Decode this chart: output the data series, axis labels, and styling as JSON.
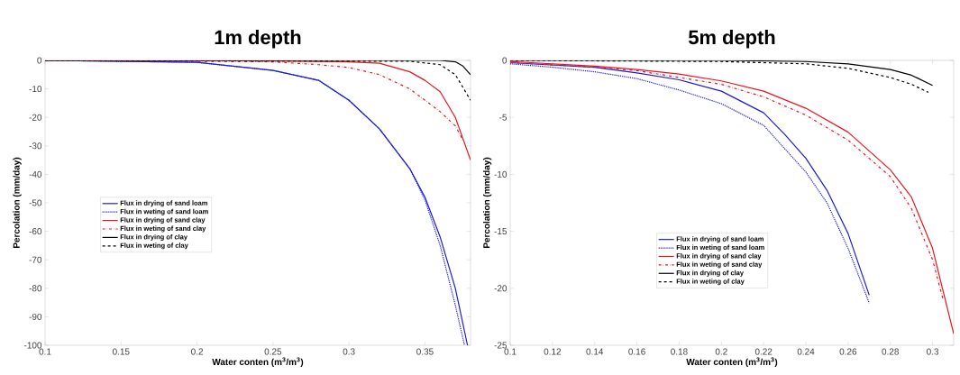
{
  "chart_data": [
    {
      "type": "line",
      "title": "1m depth",
      "xlabel": "Water conten (m$^{3}$/m$^{3}$)",
      "ylabel": "Percolation (mm/day)",
      "xlim": [
        0.1,
        0.38
      ],
      "ylim": [
        -100,
        0
      ],
      "xticks": [
        0.1,
        0.15,
        0.2,
        0.25,
        0.3,
        0.35
      ],
      "yticks": [
        -100,
        -90,
        -80,
        -70,
        -60,
        -50,
        -40,
        -30,
        -20,
        -10,
        0
      ],
      "legend": "left",
      "grid": false,
      "series": [
        {
          "name": "Flux in drying of sand loam",
          "color": "#1a1ae0",
          "line_style": "solid",
          "x": [
            0.1,
            0.2,
            0.25,
            0.28,
            0.3,
            0.32,
            0.34,
            0.35,
            0.36,
            0.37,
            0.378
          ],
          "values": [
            0,
            -0.7,
            -3.5,
            -7,
            -14,
            -24,
            -38,
            -48,
            -62,
            -80,
            -100
          ]
        },
        {
          "name": "Flux in weting of sand loam",
          "color": "#1a1ae0",
          "line_style": "dotted",
          "x": [
            0.1,
            0.2,
            0.25,
            0.28,
            0.3,
            0.32,
            0.34,
            0.35,
            0.36,
            0.37,
            0.376
          ],
          "values": [
            0,
            -0.7,
            -3.5,
            -7,
            -14,
            -24,
            -38,
            -49,
            -65,
            -86,
            -100
          ]
        },
        {
          "name": "Flux in drying of sand clay",
          "color": "#e8161b",
          "line_style": "solid",
          "x": [
            0.1,
            0.25,
            0.3,
            0.32,
            0.34,
            0.35,
            0.36,
            0.37,
            0.38
          ],
          "values": [
            0,
            -0.2,
            -0.5,
            -1,
            -4,
            -7,
            -11,
            -20,
            -35
          ]
        },
        {
          "name": "Flux in weting of sand clay",
          "color": "#e8161b",
          "line_style": "dashed",
          "x": [
            0.1,
            0.25,
            0.28,
            0.3,
            0.32,
            0.34,
            0.35,
            0.36,
            0.37,
            0.375
          ],
          "values": [
            0,
            -0.5,
            -1.5,
            -2.5,
            -5,
            -10,
            -14,
            -18,
            -23,
            -28
          ]
        },
        {
          "name": "Flux in drying of clay",
          "color": "#000000",
          "line_style": "solid",
          "x": [
            0.1,
            0.36,
            0.37,
            0.375,
            0.38
          ],
          "values": [
            0,
            0,
            -0.5,
            -2,
            -5
          ]
        },
        {
          "name": "Flux in weting of clay",
          "color": "#000000",
          "line_style": "dashed",
          "x": [
            0.1,
            0.34,
            0.36,
            0.37,
            0.38
          ],
          "values": [
            0,
            -0.3,
            -1.5,
            -5,
            -14
          ]
        }
      ]
    },
    {
      "type": "line",
      "title": "5m depth",
      "xlabel": "Water conten (m$^{3}$/m$^{3}$)",
      "ylabel": "Percolation (mm/day)",
      "xlim": [
        0.1,
        0.31
      ],
      "ylim": [
        -25,
        0
      ],
      "xticks": [
        0.1,
        0.12,
        0.14,
        0.16,
        0.18,
        0.2,
        0.22,
        0.24,
        0.26,
        0.28,
        0.3
      ],
      "yticks": [
        -25,
        -20,
        -15,
        -10,
        -5,
        0
      ],
      "legend": "bottom",
      "grid": false,
      "series": [
        {
          "name": "Flux in drying of sand loam",
          "color": "#1a1ae0",
          "line_style": "solid",
          "x": [
            0.1,
            0.14,
            0.16,
            0.18,
            0.2,
            0.22,
            0.23,
            0.24,
            0.25,
            0.26,
            0.27
          ],
          "values": [
            -0.2,
            -0.6,
            -1.1,
            -1.7,
            -2.7,
            -4.6,
            -6.5,
            -8.6,
            -11.4,
            -15.2,
            -20.6
          ]
        },
        {
          "name": "Flux in weting of sand loam",
          "color": "#1a1ae0",
          "line_style": "dotted",
          "x": [
            0.1,
            0.12,
            0.14,
            0.16,
            0.18,
            0.2,
            0.22,
            0.24,
            0.25,
            0.26,
            0.27
          ],
          "values": [
            -0.3,
            -0.6,
            -1.0,
            -1.6,
            -2.6,
            -3.8,
            -5.7,
            -9.8,
            -12.5,
            -16.5,
            -21.3
          ]
        },
        {
          "name": "Flux in drying of sand clay",
          "color": "#e8161b",
          "line_style": "solid",
          "x": [
            0.1,
            0.14,
            0.16,
            0.18,
            0.2,
            0.22,
            0.24,
            0.26,
            0.28,
            0.29,
            0.3,
            0.31
          ],
          "values": [
            -0.1,
            -0.5,
            -0.8,
            -1.2,
            -1.8,
            -2.7,
            -4.2,
            -6.3,
            -9.6,
            -12,
            -16.5,
            -24
          ]
        },
        {
          "name": "Flux in weting of sand clay",
          "color": "#e8161b",
          "line_style": "dashed",
          "x": [
            0.1,
            0.14,
            0.16,
            0.18,
            0.2,
            0.22,
            0.24,
            0.26,
            0.28,
            0.29,
            0.3,
            0.305
          ],
          "values": [
            -0.2,
            -0.6,
            -0.9,
            -1.5,
            -2.1,
            -3.2,
            -4.8,
            -7.0,
            -10.2,
            -13,
            -17.5,
            -21
          ]
        },
        {
          "name": "Flux in drying of clay",
          "color": "#000000",
          "line_style": "solid",
          "x": [
            0.1,
            0.2,
            0.24,
            0.26,
            0.28,
            0.29,
            0.3
          ],
          "values": [
            0,
            0,
            -0.1,
            -0.3,
            -0.8,
            -1.3,
            -2.2
          ]
        },
        {
          "name": "Flux in weting of clay",
          "color": "#000000",
          "line_style": "dashed",
          "x": [
            0.1,
            0.2,
            0.24,
            0.26,
            0.28,
            0.29,
            0.298
          ],
          "values": [
            0,
            -0.1,
            -0.3,
            -0.7,
            -1.5,
            -2.1,
            -2.8
          ]
        }
      ]
    }
  ]
}
